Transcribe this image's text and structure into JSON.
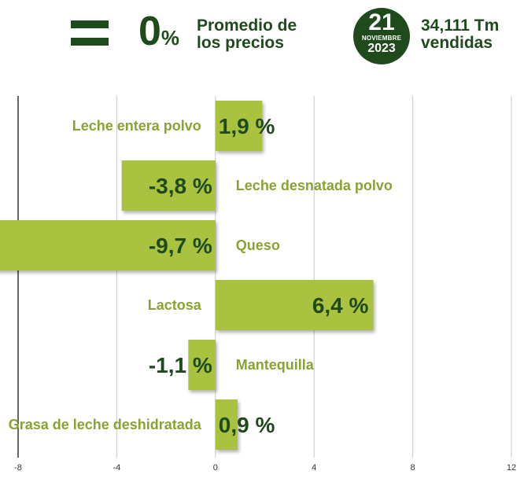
{
  "header": {
    "trend_icon": "equal-sign-icon",
    "change_value": "0",
    "change_symbol": "%",
    "change_label": "Promedio de los precios",
    "date_day": "21",
    "date_month": "NOVIEMBRE",
    "date_year": "2023",
    "sold_label": "34,111 Tm vendidas"
  },
  "colors": {
    "bar": "#a9c23f",
    "label_category": "#8aa232",
    "label_value": "#1e4a1c",
    "grid": "#c8c8c8",
    "zero_axis": "#000000"
  },
  "chart_data": {
    "type": "bar",
    "orientation": "horizontal",
    "categories": [
      "Leche entera polvo",
      "Leche desnatada polvo",
      "Queso",
      "Lactosa",
      "Mantequilla",
      "Grasa de leche deshidratada"
    ],
    "values": [
      1.9,
      -3.8,
      -9.7,
      6.4,
      -1.1,
      0.9
    ],
    "value_labels": [
      "1,9 %",
      "-3,8 %",
      "-9,7 %",
      "6,4 %",
      "-1,1 %",
      "0,9 %"
    ],
    "xlim": [
      -8,
      12
    ],
    "xticks": [
      "-8",
      "-4",
      "0",
      "4",
      "8",
      "12"
    ],
    "grid": true
  }
}
